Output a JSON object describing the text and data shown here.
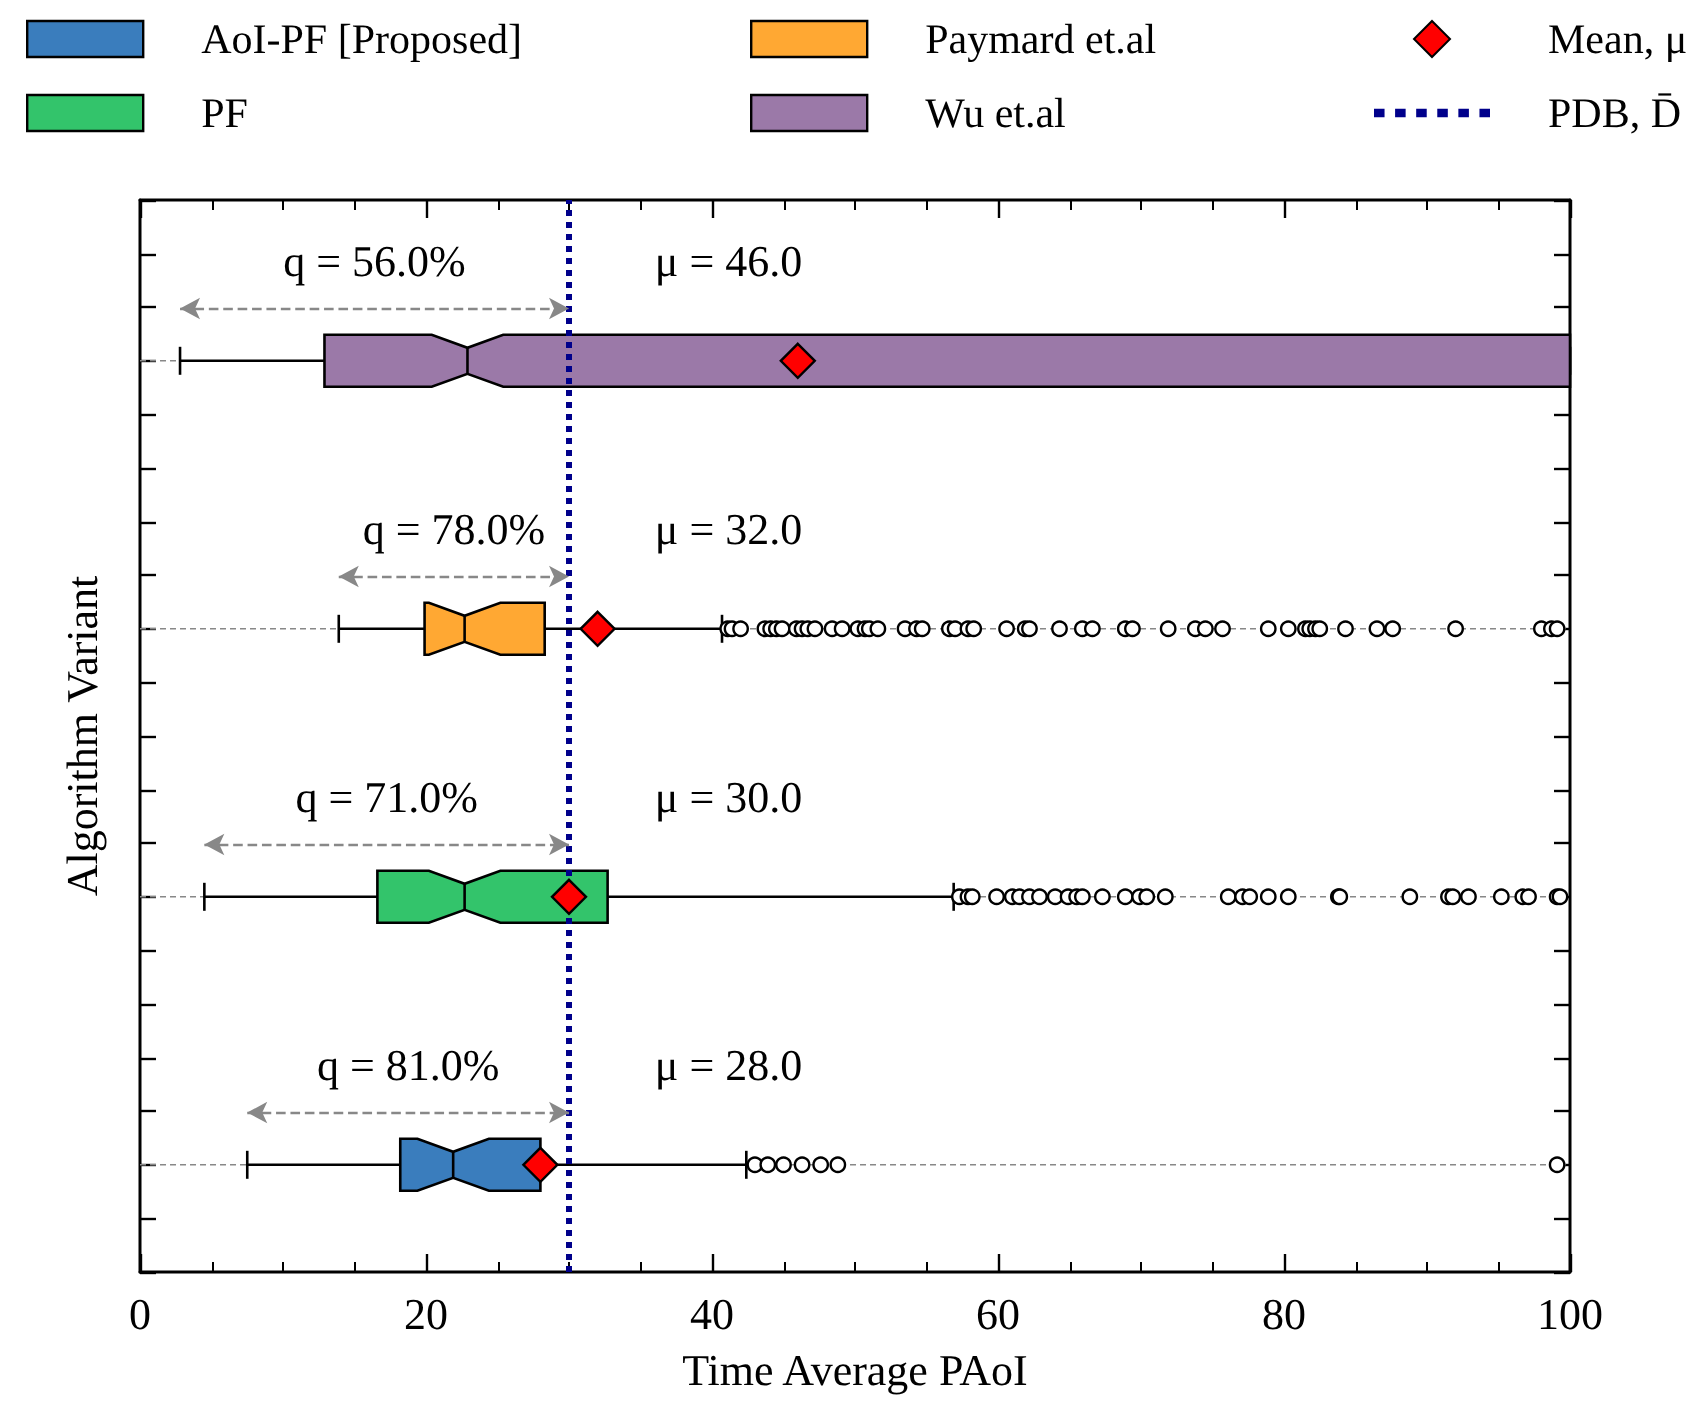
{
  "chart_data": {
    "type": "box",
    "orientation": "horizontal",
    "xlabel": "Time Average PAoI",
    "ylabel": "Algorithm Variant",
    "categories": [
      null,
      null,
      null,
      null
    ],
    "series": [
      {
        "name": "AoI-PF [Proposed]",
        "color": "#3a7dbd",
        "boxes": [
          null,
          null,
          null,
          {
            "low": 7.5,
            "q1": 18.2,
            "median": 21.9,
            "q3": 28.0,
            "high": 42.4,
            "outliers": [
              43.0,
              43.9,
              45.0,
              46.3,
              47.6,
              48.8,
              99.1
            ]
          }
        ]
      },
      {
        "name": "PF",
        "color": "#33c46b",
        "boxes": [
          null,
          null,
          {
            "low": 4.5,
            "q1": 16.6,
            "median": 22.7,
            "q3": 32.7,
            "high": 56.9,
            "outliers": [
              57.3,
              57.9,
              58.2,
              59.9,
              61.0,
              61.5,
              62.2,
              62.9,
              64.0,
              64.9,
              65.5,
              65.9,
              67.3,
              68.9,
              69.9,
              70.4,
              71.7,
              76.1,
              77.1,
              77.6,
              78.9,
              80.3,
              83.8,
              83.9,
              88.8,
              91.5,
              91.8,
              92.9,
              95.2,
              96.7,
              97.1,
              99.1,
              99.3
            ]
          },
          null
        ]
      },
      {
        "name": "Paymard et.al",
        "color": "#ffa833",
        "boxes": [
          null,
          {
            "low": 13.9,
            "q1": 19.9,
            "median": 22.7,
            "q3": 28.3,
            "high": 40.7,
            "outliers": [
              41.1,
              41.4,
              42.0,
              43.7,
              44.1,
              44.5,
              44.9,
              45.9,
              46.3,
              46.7,
              47.2,
              48.4,
              49.1,
              50.2,
              50.7,
              51.0,
              51.6,
              53.5,
              54.3,
              54.7,
              56.6,
              57.0,
              57.9,
              58.3,
              60.6,
              61.9,
              62.2,
              64.3,
              65.9,
              66.6,
              68.9,
              69.4,
              71.9,
              73.8,
              74.5,
              75.7,
              78.9,
              80.3,
              81.5,
              81.8,
              82.2,
              82.5,
              84.3,
              86.5,
              87.6,
              92.0,
              98.0,
              98.7,
              99.1
            ]
          },
          null,
          null
        ]
      },
      {
        "name": "Wu et.al",
        "color": "#9b79a8",
        "boxes": [
          {
            "low": 2.8,
            "q1": 12.9,
            "median": 22.9,
            "q3": 100,
            "high": 100
          },
          null,
          null,
          null
        ]
      },
      {
        "name": "Mean, μ",
        "type": "scatter",
        "marker": "diamond",
        "color": "#ff0000",
        "values": [
          46.0,
          32.0,
          30.0,
          28.0
        ]
      }
    ],
    "ref_lines": [
      {
        "axis": "x",
        "value": 30,
        "label": "PDB, D̄",
        "color": "#00008b",
        "line_style": "dotted"
      }
    ],
    "annotations": [
      "q = 56.0%",
      "μ = 46.0",
      "q = 78.0%",
      "μ = 32.0",
      "q = 71.0%",
      "μ = 30.0",
      "q = 81.0%",
      "μ = 28.0"
    ],
    "xlim": [
      0,
      100
    ],
    "xticks": [
      0,
      20,
      40,
      60,
      80,
      100
    ],
    "tick_labels": "x",
    "grid": "y",
    "legend": "top"
  }
}
